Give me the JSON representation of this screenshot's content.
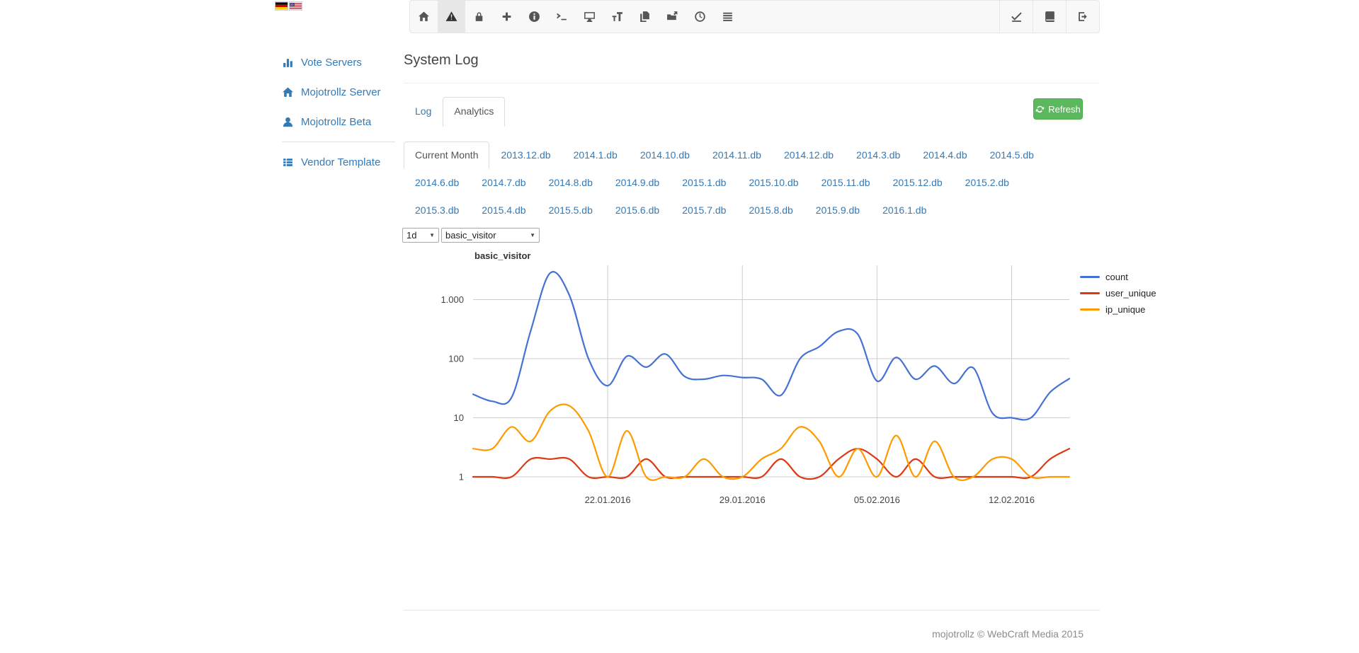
{
  "language": {
    "flags": [
      {
        "name": "german-flag"
      },
      {
        "name": "us-flag"
      }
    ]
  },
  "toolbar": {
    "left_items": [
      {
        "icon": "home-icon",
        "active": false
      },
      {
        "icon": "warning-icon",
        "active": true
      },
      {
        "icon": "lock-icon",
        "active": false
      },
      {
        "icon": "plus-icon",
        "active": false
      },
      {
        "icon": "info-icon",
        "active": false
      },
      {
        "icon": "terminal-icon",
        "active": false
      },
      {
        "icon": "desktop-icon",
        "active": false
      },
      {
        "icon": "text-height-icon",
        "active": false
      },
      {
        "icon": "copy-icon",
        "active": false
      },
      {
        "icon": "folder-open-icon",
        "active": false
      },
      {
        "icon": "clock-icon",
        "active": false
      },
      {
        "icon": "list-icon",
        "active": false
      }
    ],
    "right_items": [
      {
        "icon": "download-icon"
      },
      {
        "icon": "book-icon"
      },
      {
        "icon": "sign-out-icon"
      }
    ]
  },
  "sidebar": {
    "items": [
      {
        "icon": "bar-chart-icon",
        "label": "Vote Servers",
        "divider_before": false
      },
      {
        "icon": "home-icon",
        "label": "Mojotrollz Server",
        "divider_before": false
      },
      {
        "icon": "user-icon",
        "label": "Mojotrollz Beta",
        "divider_before": false
      },
      {
        "icon": "th-list-icon",
        "label": "Vendor Template",
        "divider_before": true
      }
    ]
  },
  "page": {
    "title": "System Log"
  },
  "view_tabs": {
    "items": [
      {
        "label": "Log",
        "active": false
      },
      {
        "label": "Analytics",
        "active": true
      }
    ]
  },
  "refresh_button": {
    "label": "Refresh",
    "icon": "refresh-icon",
    "color": "#5cb85c"
  },
  "db_tabs": {
    "rows": [
      [
        {
          "label": "Current Month",
          "active": true
        },
        {
          "label": "2013.12.db",
          "active": false
        },
        {
          "label": "2014.1.db",
          "active": false
        },
        {
          "label": "2014.10.db",
          "active": false
        },
        {
          "label": "2014.11.db",
          "active": false
        },
        {
          "label": "2014.12.db",
          "active": false
        },
        {
          "label": "2014.3.db",
          "active": false
        },
        {
          "label": "2014.4.db",
          "active": false
        },
        {
          "label": "2014.5.db",
          "active": false
        }
      ],
      [
        {
          "label": "2014.6.db",
          "active": false
        },
        {
          "label": "2014.7.db",
          "active": false
        },
        {
          "label": "2014.8.db",
          "active": false
        },
        {
          "label": "2014.9.db",
          "active": false
        },
        {
          "label": "2015.1.db",
          "active": false
        },
        {
          "label": "2015.10.db",
          "active": false
        },
        {
          "label": "2015.11.db",
          "active": false
        },
        {
          "label": "2015.12.db",
          "active": false
        },
        {
          "label": "2015.2.db",
          "active": false
        }
      ],
      [
        {
          "label": "2015.3.db",
          "active": false
        },
        {
          "label": "2015.4.db",
          "active": false
        },
        {
          "label": "2015.5.db",
          "active": false
        },
        {
          "label": "2015.6.db",
          "active": false
        },
        {
          "label": "2015.7.db",
          "active": false
        },
        {
          "label": "2015.8.db",
          "active": false
        },
        {
          "label": "2015.9.db",
          "active": false
        },
        {
          "label": "2016.1.db",
          "active": false
        }
      ]
    ]
  },
  "filters": {
    "interval_select": {
      "value": "1d"
    },
    "metric_select": {
      "value": "basic_visitor"
    }
  },
  "chart_data": {
    "type": "line",
    "title": "basic_visitor",
    "xlabel": "",
    "ylabel": "",
    "y_scale": "log",
    "ylim": [
      1,
      3500
    ],
    "grid": true,
    "legend_position": "right",
    "curve": "smooth",
    "gridline_color": "#cccccc",
    "y_ticks": [
      1,
      10,
      100,
      1000
    ],
    "y_tick_labels": [
      "1",
      "10",
      "100",
      "1.000"
    ],
    "x_tick_indices": [
      7,
      14,
      21,
      28
    ],
    "x_tick_labels": [
      "22.01.2016",
      "29.01.2016",
      "05.02.2016",
      "12.02.2016"
    ],
    "x": [
      "15.01.2016",
      "16.01.2016",
      "17.01.2016",
      "18.01.2016",
      "19.01.2016",
      "20.01.2016",
      "21.01.2016",
      "22.01.2016",
      "23.01.2016",
      "24.01.2016",
      "25.01.2016",
      "26.01.2016",
      "27.01.2016",
      "28.01.2016",
      "29.01.2016",
      "30.01.2016",
      "31.01.2016",
      "01.02.2016",
      "02.02.2016",
      "03.02.2016",
      "04.02.2016",
      "05.02.2016",
      "06.02.2016",
      "07.02.2016",
      "08.02.2016",
      "09.02.2016",
      "10.02.2016",
      "11.02.2016",
      "12.02.2016",
      "13.02.2016",
      "14.02.2016",
      "15.02.2016"
    ],
    "series": [
      {
        "name": "count",
        "color": "#4472d4",
        "values": [
          25,
          19,
          22,
          300,
          2800,
          1200,
          100,
          35,
          110,
          72,
          120,
          50,
          45,
          52,
          48,
          45,
          24,
          100,
          160,
          290,
          260,
          42,
          105,
          45,
          75,
          38,
          70,
          12,
          10,
          10,
          27,
          46
        ]
      },
      {
        "name": "user_unique",
        "color": "#dc3912",
        "values": [
          1,
          1,
          1,
          2,
          2,
          2,
          1,
          1,
          1,
          2,
          1,
          1,
          1,
          1,
          1,
          1,
          2,
          1,
          1,
          2,
          3,
          2,
          1,
          2,
          1,
          1,
          1,
          1,
          1,
          1,
          2,
          3
        ]
      },
      {
        "name": "ip_unique",
        "color": "#ff9900",
        "values": [
          3,
          3,
          7,
          4,
          13,
          16,
          6,
          1,
          6,
          1,
          1,
          1,
          2,
          1,
          1,
          2,
          3,
          7,
          4,
          1,
          3,
          1,
          5,
          1,
          4,
          1,
          1,
          2,
          2,
          1,
          1,
          1
        ]
      }
    ]
  },
  "footer": {
    "text": "mojotrollz © WebCraft Media 2015"
  }
}
